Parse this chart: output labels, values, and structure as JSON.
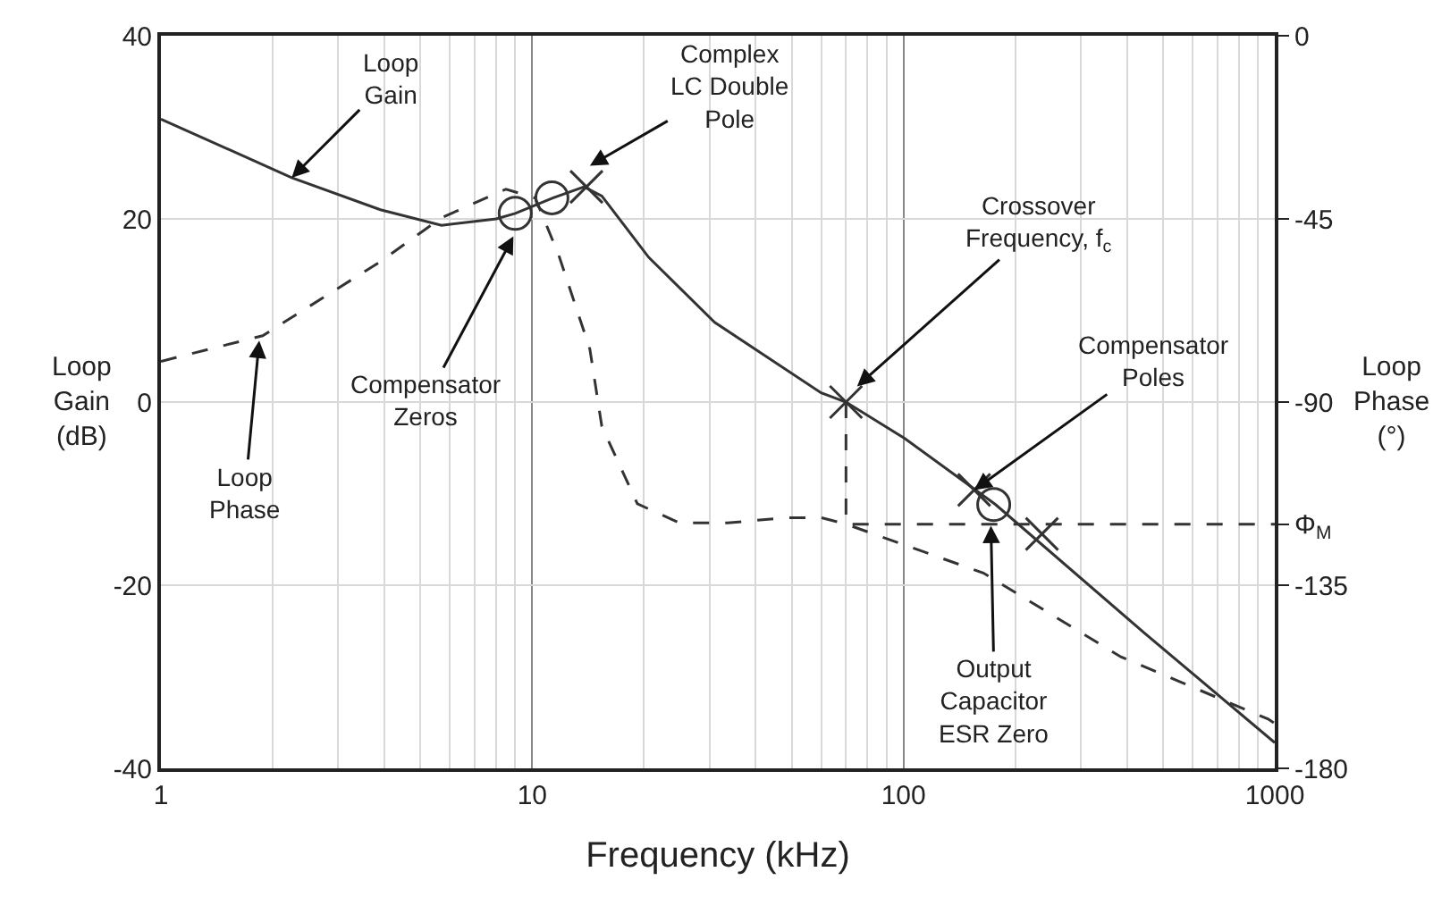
{
  "chart_data": {
    "type": "line",
    "xlabel": "Frequency (kHz)",
    "ylabel": "Loop\nGain\n(dB)",
    "y2label": "Loop\nPhase\n(°)",
    "log": "x",
    "grid": true,
    "xlim": [
      1,
      1000
    ],
    "xticks": [
      1,
      10,
      100,
      1000
    ],
    "ylim": [
      -40,
      40
    ],
    "yticks": [
      -40,
      -20,
      0,
      20,
      40
    ],
    "y2lim": [
      -180,
      0
    ],
    "y2ticks": [
      -180,
      -135,
      {
        "value": -120,
        "label": "Φ$_{M}$"
      },
      -90,
      -45,
      0
    ],
    "series": [
      {
        "color": "#333333",
        "line_style": "solid",
        "marker": "none",
        "x": [
          1,
          2.25,
          3.9,
          5.7,
          8,
          9,
          11.4,
          13.8,
          15.4,
          20.6,
          31,
          60,
          70,
          101,
          177,
          445,
          1000
        ],
        "values": [
          30.9,
          24.5,
          21,
          19.3,
          20,
          20.6,
          22.3,
          23.5,
          22.5,
          15.8,
          8.7,
          1,
          0,
          -4,
          -11.2,
          -25.2,
          -37.2
        ]
      },
      {
        "type": "line",
        "color": "#333333",
        "line_style": "dashed",
        "marker": "none",
        "axis": "y2",
        "x": [
          1,
          1.88,
          3.9,
          5.7,
          8.5,
          10.2,
          11.8,
          14.3,
          15.4,
          19.2,
          24.9,
          33.6,
          48.5,
          60,
          70,
          164,
          385,
          960,
          1000
        ],
        "values": [
          -80,
          -73.7,
          -55.5,
          -44.7,
          -37.7,
          -39.9,
          -54,
          -77,
          -96,
          -115,
          -119.7,
          -119.7,
          -118.4,
          -118.4,
          -120,
          -132,
          -152.6,
          -167.9,
          -169
        ]
      },
      {
        "type": "line",
        "color": "#333333",
        "line_style": "dashed",
        "marker": "none",
        "axis": "y2",
        "x": [
          70,
          70,
          1000
        ],
        "values": [
          -90,
          -120,
          -120
        ]
      },
      {
        "type": "scatter",
        "color": "#333333",
        "marker": "circle",
        "x": [
          9,
          11.3,
          175
        ],
        "values": [
          20.6,
          22.3,
          -11.2
        ]
      },
      {
        "type": "scatter",
        "color": "#333333",
        "marker": "cross",
        "x": [
          14,
          70,
          155,
          236
        ],
        "values": [
          23.5,
          0,
          -9.6,
          -14.4
        ]
      }
    ],
    "annotations": [
      {
        "text": "Loop\nGain",
        "x": 2.25,
        "y": 24.5
      },
      {
        "text": "Complex\nLC Double\nPole",
        "x": 14.3,
        "y": 25.8
      },
      {
        "text": "Compensator\nZeros",
        "x": 8.9,
        "y": 18.1
      },
      {
        "text": "Loop\nPhase",
        "x": 1.84,
        "y": 6.7
      },
      {
        "text": "Crossover\nFrequency, f$_{c}$",
        "x": 75,
        "y": 1.7
      },
      {
        "text": "Compensator\nPoles",
        "x": 155,
        "y": -9.6
      },
      {
        "text": "Output\nCapacitor\nESR Zero",
        "x": 172,
        "y": -13.5
      }
    ]
  }
}
